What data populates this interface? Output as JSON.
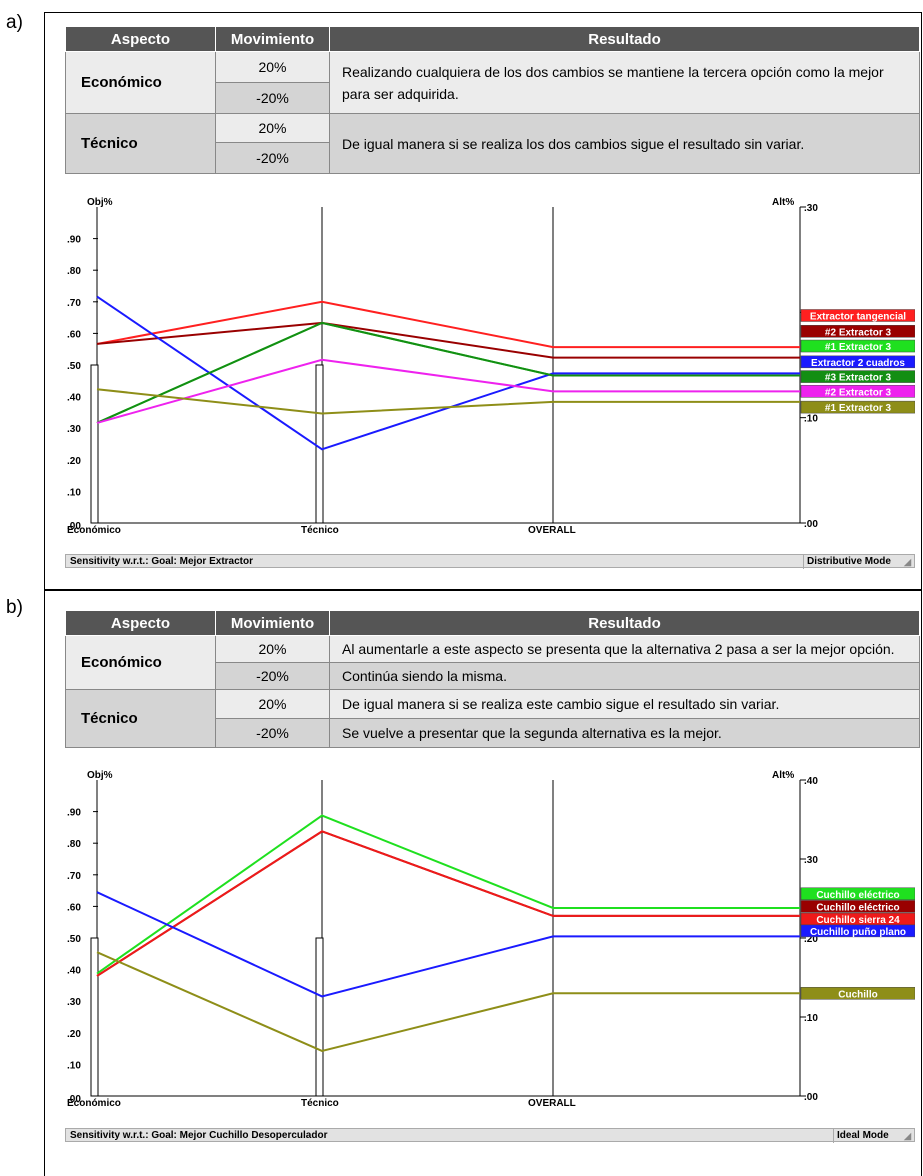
{
  "panels": [
    {
      "label": "a)",
      "table": {
        "headers": [
          "Aspecto",
          "Movimiento",
          "Resultado"
        ],
        "groups": [
          {
            "aspecto": "Económico",
            "rows": [
              {
                "mov": "20%"
              },
              {
                "mov": "-20%"
              }
            ],
            "resultado": "Realizando cualquiera de los dos cambios se mantiene la tercera opción como la mejor para ser adquirida."
          },
          {
            "aspecto": "Técnico",
            "rows": [
              {
                "mov": "20%"
              },
              {
                "mov": "-20%"
              }
            ],
            "resultado": "De igual manera si se realiza los dos cambios sigue el resultado sin variar."
          }
        ]
      },
      "status": {
        "left": "Sensitivity w.r.t.: Goal: Mejor Extractor",
        "right": "Distributive Mode"
      }
    },
    {
      "label": "b)",
      "table": {
        "headers": [
          "Aspecto",
          "Movimiento",
          "Resultado"
        ],
        "groups": [
          {
            "aspecto": "Económico",
            "rows": [
              {
                "mov": "20%",
                "resultado": "Al aumentarle a este aspecto se presenta que la alternativa 2 pasa a ser la mejor opción."
              },
              {
                "mov": "-20%",
                "resultado": "Continúa siendo la misma."
              }
            ]
          },
          {
            "aspecto": "Técnico",
            "rows": [
              {
                "mov": "20%",
                "resultado": "De igual manera si se realiza este cambio sigue el resultado sin variar."
              },
              {
                "mov": "-20%",
                "resultado": "Se vuelve a presentar que la segunda alternativa es la mejor."
              }
            ]
          }
        ]
      },
      "status": {
        "left": "Sensitivity w.r.t.: Goal: Mejor Cuchillo Desoperculador",
        "right": "Ideal Mode"
      }
    }
  ],
  "chart_data": [
    {
      "type": "line",
      "y_left_label": "Obj%",
      "y_right_label": "Alt%",
      "x_labels": [
        "Económico",
        "Técnico",
        "OVERALL"
      ],
      "y_left_ticks": [
        ".00",
        ".10",
        ".20",
        ".30",
        ".40",
        ".50",
        ".60",
        ".70",
        ".80",
        ".90"
      ],
      "y_left_range": [
        0,
        1
      ],
      "y_right_ticks": [
        ".00",
        ".10",
        ".20",
        ".30"
      ],
      "y_right_range": [
        0,
        0.3
      ],
      "objective_bars": [
        0.5,
        0.5
      ],
      "series": [
        {
          "name": "Extractor tangencial",
          "color": "#ff2020",
          "values": [
            0.17,
            0.21,
            0.167
          ],
          "label_value": 0.197
        },
        {
          "name": "#2 Extractor 3",
          "color": "#990000",
          "values": [
            0.17,
            0.19,
            0.157
          ],
          "label_value": 0.182
        },
        {
          "name": "#1 Extractor 3",
          "color": "#1fe01f",
          "values": [
            0.095,
            0.19,
            0.14
          ],
          "label_value": 0.168
        },
        {
          "name": "Extractor 2 cuadros",
          "color": "#1a1aff",
          "values": [
            0.215,
            0.07,
            0.142
          ],
          "label_value": 0.153
        },
        {
          "name": "#3 Extractor 3",
          "color": "#138e13",
          "values": [
            0.095,
            0.19,
            0.14
          ],
          "label_value": 0.139
        },
        {
          "name": "#2 Extractor 3",
          "color": "#ee22ee",
          "values": [
            0.095,
            0.155,
            0.125
          ],
          "label_value": 0.125
        },
        {
          "name": "#1 Extractor 3",
          "color": "#8e8e18",
          "values": [
            0.127,
            0.104,
            0.115
          ],
          "label_value": 0.11
        }
      ]
    },
    {
      "type": "line",
      "y_left_label": "Obj%",
      "y_right_label": "Alt%",
      "x_labels": [
        "Económico",
        "Técnico",
        "OVERALL"
      ],
      "y_left_ticks": [
        ".00",
        ".10",
        ".20",
        ".30",
        ".40",
        ".50",
        ".60",
        ".70",
        ".80",
        ".90"
      ],
      "y_left_range": [
        0,
        1
      ],
      "y_right_ticks": [
        ".00",
        ".10",
        ".20",
        ".30",
        ".40"
      ],
      "y_right_range": [
        0,
        0.4
      ],
      "objective_bars": [
        0.5,
        0.5
      ],
      "series": [
        {
          "name": "Cuchillo eléctrico",
          "color": "#1fe01f",
          "values": [
            0.155,
            0.355,
            0.238
          ],
          "label_value": 0.256
        },
        {
          "name": "Cuchillo eléctrico",
          "color": "#990000",
          "values": [
            0.152,
            0.335,
            0.228
          ],
          "label_value": 0.24
        },
        {
          "name": "Cuchillo sierra 24",
          "color": "#ee1a1a",
          "values": [
            0.152,
            0.335,
            0.228
          ],
          "label_value": 0.224
        },
        {
          "name": "Cuchillo puño plano",
          "color": "#1a1aff",
          "values": [
            0.258,
            0.126,
            0.202
          ],
          "label_value": 0.209
        },
        {
          "name": "Cuchillo",
          "color": "#8e8e18",
          "values": [
            0.182,
            0.057,
            0.13
          ],
          "label_value": 0.13
        }
      ]
    }
  ]
}
